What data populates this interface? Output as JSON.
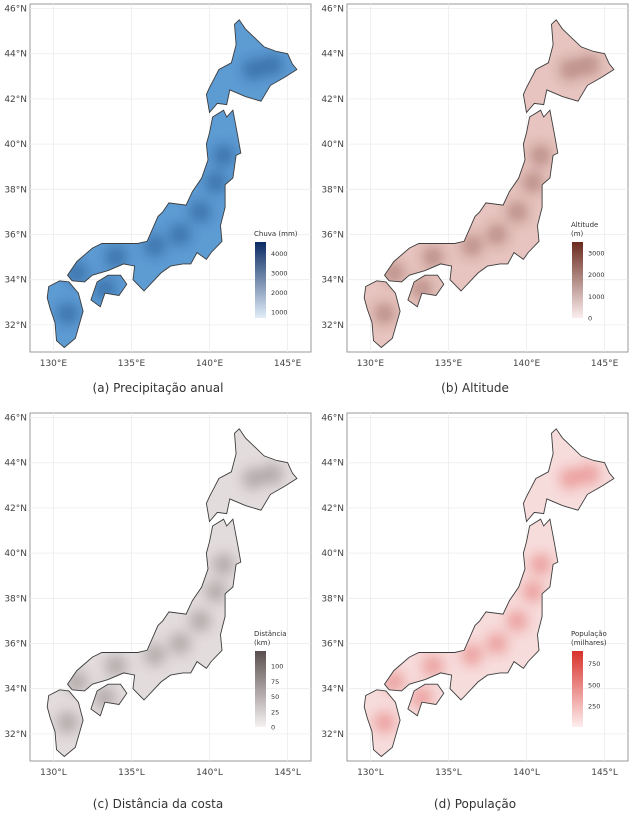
{
  "chart_data": [
    {
      "type": "heatmap",
      "panel_label": "(a) Precipitação anual",
      "xlim": [
        128.5,
        146.5
      ],
      "ylim": [
        30.8,
        46.2
      ],
      "x_ticks": [
        {
          "value": 130,
          "label": "130°E"
        },
        {
          "value": 135,
          "label": "135°E"
        },
        {
          "value": 140,
          "label": "140°E"
        },
        {
          "value": 145,
          "label": "145°E"
        }
      ],
      "y_ticks": [
        {
          "value": 32,
          "label": "32°N"
        },
        {
          "value": 34,
          "label": "34°N"
        },
        {
          "value": 36,
          "label": "36°N"
        },
        {
          "value": 38,
          "label": "38°N"
        },
        {
          "value": 40,
          "label": "40°N"
        },
        {
          "value": 42,
          "label": "42°N"
        },
        {
          "value": 44,
          "label": "44°N"
        },
        {
          "value": 46,
          "label": "46°N"
        }
      ],
      "legend": {
        "title_lines": [
          "Chuva (mm)"
        ],
        "range": [
          700,
          4600
        ],
        "ticks": [
          {
            "value": 4000,
            "label": "4000"
          },
          {
            "value": 3000,
            "label": "3000"
          },
          {
            "value": 2000,
            "label": "2000"
          },
          {
            "value": 1000,
            "label": "1000"
          }
        ],
        "color_low": "#e1edf8",
        "color_high": "#0a2b63"
      },
      "fill_color": "#5d9bd3",
      "stroke_color": "#3d3d3d"
    },
    {
      "type": "heatmap",
      "panel_label": "(b) Altitude",
      "xlim": [
        128.5,
        146.5
      ],
      "ylim": [
        30.8,
        46.2
      ],
      "x_ticks": [
        {
          "value": 130,
          "label": "130°E"
        },
        {
          "value": 135,
          "label": "135°E"
        },
        {
          "value": 140,
          "label": "140°E"
        },
        {
          "value": 145,
          "label": "145°E"
        }
      ],
      "y_ticks": [
        {
          "value": 32,
          "label": "32°N"
        },
        {
          "value": 34,
          "label": "34°N"
        },
        {
          "value": 36,
          "label": "36°N"
        },
        {
          "value": 38,
          "label": "38°N"
        },
        {
          "value": 40,
          "label": "40°N"
        },
        {
          "value": 42,
          "label": "42°N"
        },
        {
          "value": 44,
          "label": "44°N"
        },
        {
          "value": 46,
          "label": "46°N"
        }
      ],
      "legend": {
        "title_lines": [
          "Altitude",
          "(m)"
        ],
        "range": [
          0,
          3500
        ],
        "ticks": [
          {
            "value": 3000,
            "label": "3000"
          },
          {
            "value": 2000,
            "label": "2000"
          },
          {
            "value": 1000,
            "label": "1000"
          },
          {
            "value": 0,
            "label": "0"
          }
        ],
        "color_low": "#fbeeee",
        "color_high": "#6a2a1e"
      },
      "fill_color": "#e7c4bf",
      "stroke_color": "#3d3d3d"
    },
    {
      "type": "heatmap",
      "panel_label": "(c) Distância da costa",
      "xlim": [
        128.5,
        146.5
      ],
      "ylim": [
        30.8,
        46.2
      ],
      "x_ticks": [
        {
          "value": 130,
          "label": "130°L"
        },
        {
          "value": 135,
          "label": "135°L"
        },
        {
          "value": 140,
          "label": "140°L"
        },
        {
          "value": 145,
          "label": "145°L"
        }
      ],
      "y_ticks": [
        {
          "value": 32,
          "label": "32°N"
        },
        {
          "value": 34,
          "label": "34°N"
        },
        {
          "value": 36,
          "label": "36°N"
        },
        {
          "value": 38,
          "label": "38°N"
        },
        {
          "value": 40,
          "label": "40°N"
        },
        {
          "value": 42,
          "label": "42°N"
        },
        {
          "value": 44,
          "label": "44°N"
        },
        {
          "value": 46,
          "label": "46°N"
        }
      ],
      "legend": {
        "title_lines": [
          "Distância",
          "(km)"
        ],
        "range": [
          0,
          125
        ],
        "ticks": [
          {
            "value": 100,
            "label": "100"
          },
          {
            "value": 75,
            "label": "75"
          },
          {
            "value": 50,
            "label": "50"
          },
          {
            "value": 25,
            "label": "25"
          },
          {
            "value": 0,
            "label": "0"
          }
        ],
        "color_low": "#f6f2f2",
        "color_high": "#5a4f4f"
      },
      "fill_color": "#e3dcdc",
      "stroke_color": "#3d3d3d"
    },
    {
      "type": "heatmap",
      "panel_label": "(d) População",
      "xlim": [
        128.5,
        146.5
      ],
      "ylim": [
        30.8,
        46.2
      ],
      "x_ticks": [
        {
          "value": 130,
          "label": "130°L"
        },
        {
          "value": 135,
          "label": "135°L"
        },
        {
          "value": 140,
          "label": "140°L"
        },
        {
          "value": 145,
          "label": "145°L"
        }
      ],
      "y_ticks": [
        {
          "value": 32,
          "label": "32°N"
        },
        {
          "value": 34,
          "label": "34°N"
        },
        {
          "value": 36,
          "label": "36°N"
        },
        {
          "value": 38,
          "label": "38°N"
        },
        {
          "value": 40,
          "label": "40°N"
        },
        {
          "value": 42,
          "label": "42°N"
        },
        {
          "value": 44,
          "label": "44°N"
        },
        {
          "value": 46,
          "label": "46°N"
        }
      ],
      "legend": {
        "title_lines": [
          "População",
          "(milhares)"
        ],
        "range": [
          0,
          900
        ],
        "ticks": [
          {
            "value": 750,
            "label": "750"
          },
          {
            "value": 500,
            "label": "500"
          },
          {
            "value": 250,
            "label": "250"
          }
        ],
        "color_low": "#fdeeee",
        "color_high": "#d8322c"
      },
      "fill_color": "#f7dcdc",
      "stroke_color": "#3d3d3d"
    }
  ]
}
